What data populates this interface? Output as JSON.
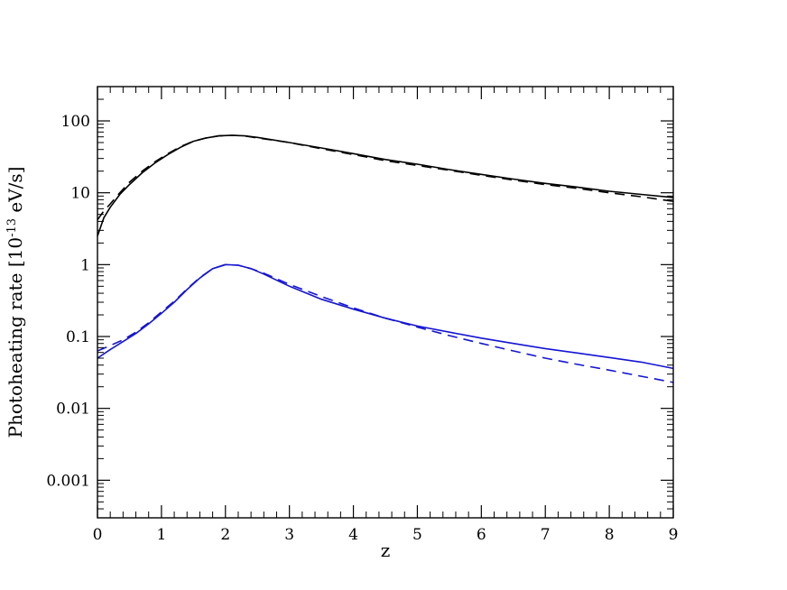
{
  "chart_data": {
    "type": "line",
    "xlabel": "z",
    "ylabel_main": "Photoheating rate [10",
    "ylabel_exp": "-13",
    "ylabel_unit": " eV/s]",
    "xlim": [
      0,
      9
    ],
    "ylim": [
      0.0003,
      300
    ],
    "yscale": "log",
    "grid": false,
    "x_ticks": [
      {
        "value": 0,
        "label": "0"
      },
      {
        "value": 1,
        "label": "1"
      },
      {
        "value": 2,
        "label": "2"
      },
      {
        "value": 3,
        "label": "3"
      },
      {
        "value": 4,
        "label": "4"
      },
      {
        "value": 5,
        "label": "5"
      },
      {
        "value": 6,
        "label": "6"
      },
      {
        "value": 7,
        "label": "7"
      },
      {
        "value": 8,
        "label": "8"
      },
      {
        "value": 9,
        "label": "9"
      }
    ],
    "y_ticks": [
      {
        "value": 0.001,
        "label": "0.001"
      },
      {
        "value": 0.01,
        "label": "0.01"
      },
      {
        "value": 0.1,
        "label": "0.1"
      },
      {
        "value": 1,
        "label": "1"
      },
      {
        "value": 10,
        "label": "10"
      },
      {
        "value": 100,
        "label": "100"
      }
    ],
    "series": [
      {
        "color": "#000000",
        "dash": "solid",
        "x": [
          0,
          0.1,
          0.2,
          0.35,
          0.5,
          0.7,
          0.9,
          1.1,
          1.3,
          1.5,
          1.7,
          1.9,
          2.1,
          2.3,
          2.5,
          3.0,
          3.5,
          4.0,
          4.5,
          5.0,
          5.5,
          6.0,
          6.5,
          7.0,
          7.5,
          8.0,
          8.5,
          9.0
        ],
        "y": [
          2.5,
          4.5,
          6.3,
          9.5,
          13,
          19,
          26,
          34,
          43,
          52,
          58,
          62,
          63,
          62,
          59,
          50,
          42,
          35,
          29,
          25,
          21,
          18,
          15.5,
          13.5,
          12,
          10.5,
          9.5,
          8.6
        ]
      },
      {
        "color": "#000000",
        "dash": "dashed",
        "x": [
          0,
          0.1,
          0.2,
          0.35,
          0.5,
          0.7,
          0.9,
          1.1,
          1.3,
          1.5,
          1.7,
          1.9,
          2.1,
          2.3,
          2.5,
          3.0,
          3.5,
          4.0,
          4.5,
          5.0,
          5.5,
          6.0,
          6.5,
          7.0,
          7.5,
          8.0,
          8.5,
          9.0
        ],
        "y": [
          4.2,
          5.6,
          7.0,
          10,
          14,
          20,
          27,
          35,
          44,
          52,
          58,
          62,
          63,
          62,
          58,
          50,
          41,
          34,
          28,
          24,
          20.5,
          17.5,
          15,
          13,
          11.5,
          10,
          8.8,
          7.6
        ]
      },
      {
        "color": "#1414d6",
        "dash": "solid",
        "x": [
          0,
          0.2,
          0.4,
          0.6,
          0.8,
          1.0,
          1.2,
          1.4,
          1.6,
          1.8,
          2.0,
          2.2,
          2.4,
          2.6,
          3.0,
          3.5,
          4.0,
          4.5,
          5.0,
          5.5,
          6.0,
          6.5,
          7.0,
          7.5,
          8.0,
          8.5,
          9.0
        ],
        "y": [
          0.05,
          0.066,
          0.085,
          0.11,
          0.15,
          0.21,
          0.3,
          0.45,
          0.65,
          0.88,
          1.0,
          0.98,
          0.88,
          0.74,
          0.5,
          0.33,
          0.24,
          0.18,
          0.14,
          0.115,
          0.095,
          0.08,
          0.068,
          0.059,
          0.051,
          0.044,
          0.036
        ]
      },
      {
        "color": "#1414d6",
        "dash": "dashed",
        "x": [
          0,
          0.2,
          0.4,
          0.6,
          0.8,
          1.0,
          1.2,
          1.4,
          1.6,
          1.8,
          2.0,
          2.2,
          2.4,
          2.6,
          3.0,
          3.5,
          4.0,
          4.5,
          5.0,
          5.5,
          6.0,
          6.5,
          7.0,
          7.5,
          8.0,
          8.5,
          9.0
        ],
        "y": [
          0.063,
          0.075,
          0.09,
          0.115,
          0.155,
          0.22,
          0.31,
          0.46,
          0.66,
          0.88,
          1.0,
          0.98,
          0.88,
          0.76,
          0.53,
          0.36,
          0.25,
          0.18,
          0.135,
          0.103,
          0.08,
          0.063,
          0.05,
          0.041,
          0.034,
          0.028,
          0.023
        ]
      }
    ]
  }
}
